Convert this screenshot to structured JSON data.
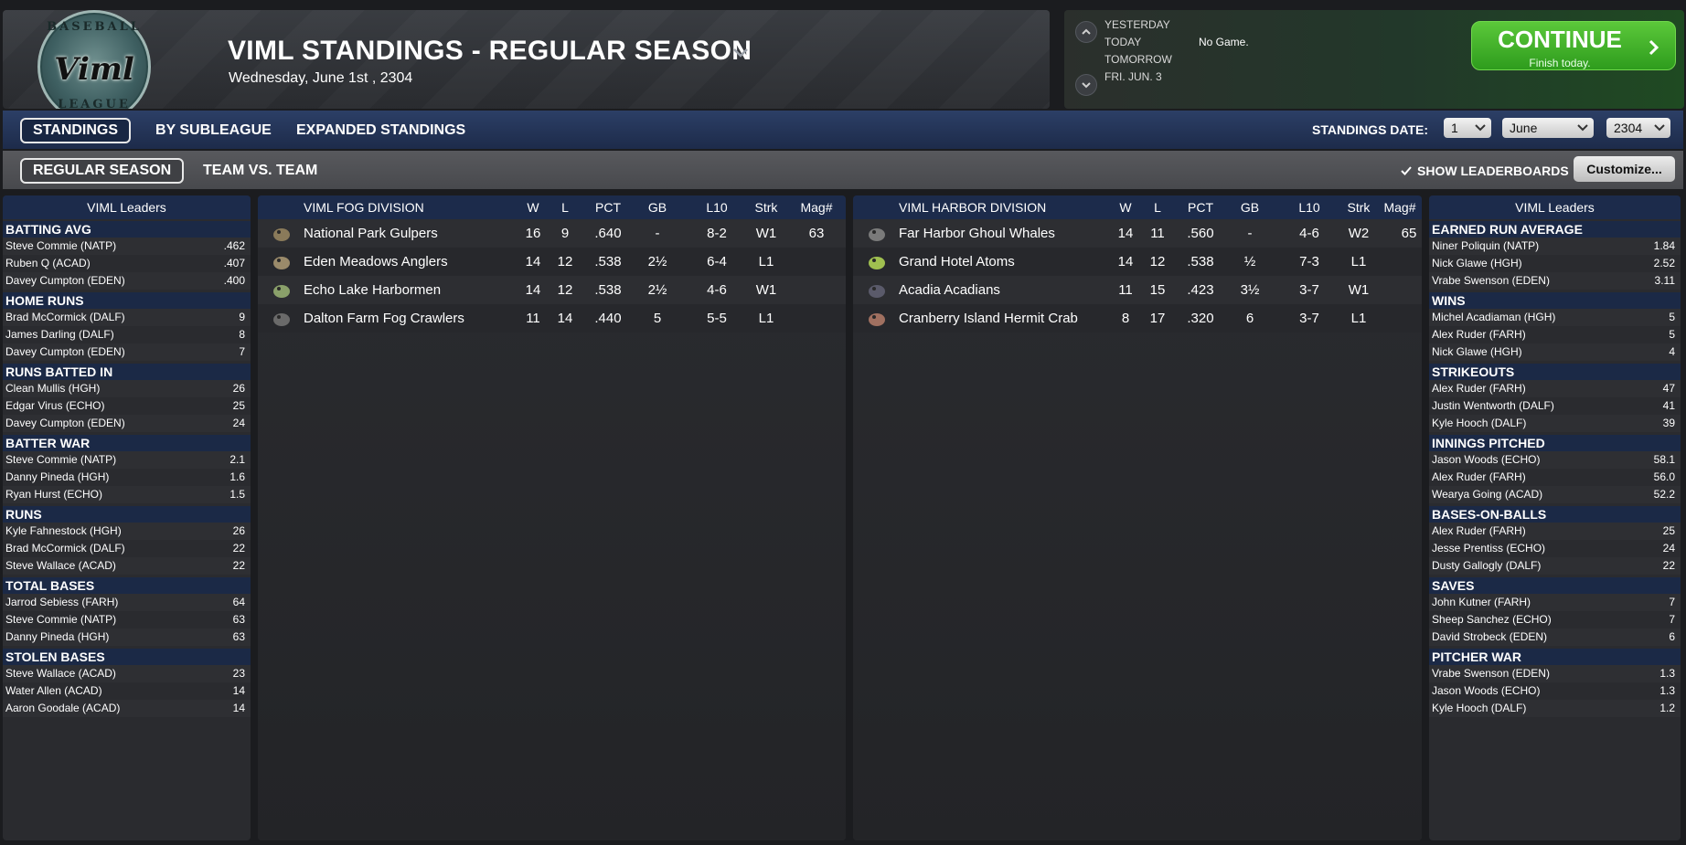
{
  "header": {
    "logo_top": "BASEBALL",
    "logo_text": "Viml",
    "logo_bottom": "LEAGUE",
    "title": "VIML STANDINGS - REGULAR SEASON",
    "date": "Wednesday, June 1st , 2304"
  },
  "game_nav": {
    "yesterday": "YESTERDAY",
    "today": "TODAY",
    "tomorrow": "TOMORROW",
    "next_day": "FRI. JUN. 3",
    "status": "No Game.",
    "continue_label": "CONTINUE",
    "continue_sub": "Finish today."
  },
  "tabs_primary": {
    "standings": "STANDINGS",
    "by_subleague": "BY SUBLEAGUE",
    "expanded": "EXPANDED STANDINGS",
    "date_label": "STANDINGS DATE:",
    "day": "1",
    "month": "June",
    "year": "2304"
  },
  "tabs_secondary": {
    "regular_season": "REGULAR SEASON",
    "team_vs_team": "TEAM VS. TEAM",
    "show_leaderboards": "SHOW LEADERBOARDS",
    "customize": "Customize..."
  },
  "columns": {
    "w": "W",
    "l": "L",
    "pct": "PCT",
    "gb": "GB",
    "l10": "L10",
    "strk": "Strk",
    "mag": "Mag#"
  },
  "fog_division": {
    "title": "VIML FOG DIVISION",
    "teams": [
      {
        "name": "National Park Gulpers",
        "w": "16",
        "l": "9",
        "pct": ".640",
        "gb": "-",
        "l10": "8-2",
        "strk": "W1",
        "mag": "63"
      },
      {
        "name": "Eden Meadows Anglers",
        "w": "14",
        "l": "12",
        "pct": ".538",
        "gb": "2½",
        "l10": "6-4",
        "strk": "L1",
        "mag": ""
      },
      {
        "name": "Echo Lake Harbormen",
        "w": "14",
        "l": "12",
        "pct": ".538",
        "gb": "2½",
        "l10": "4-6",
        "strk": "W1",
        "mag": ""
      },
      {
        "name": "Dalton Farm Fog Crawlers",
        "w": "11",
        "l": "14",
        "pct": ".440",
        "gb": "5",
        "l10": "5-5",
        "strk": "L1",
        "mag": ""
      }
    ]
  },
  "harbor_division": {
    "title": "VIML HARBOR DIVISION",
    "teams": [
      {
        "name": "Far Harbor Ghoul Whales",
        "w": "14",
        "l": "11",
        "pct": ".560",
        "gb": "-",
        "l10": "4-6",
        "strk": "W2",
        "mag": "65"
      },
      {
        "name": "Grand Hotel Atoms",
        "w": "14",
        "l": "12",
        "pct": ".538",
        "gb": "½",
        "l10": "7-3",
        "strk": "L1",
        "mag": ""
      },
      {
        "name": "Acadia Acadians",
        "w": "11",
        "l": "15",
        "pct": ".423",
        "gb": "3½",
        "l10": "3-7",
        "strk": "W1",
        "mag": ""
      },
      {
        "name": "Cranberry Island Hermit Crab",
        "w": "8",
        "l": "17",
        "pct": ".320",
        "gb": "6",
        "l10": "3-7",
        "strk": "L1",
        "mag": ""
      }
    ]
  },
  "leaders_left": {
    "title": "VIML Leaders",
    "categories": [
      {
        "name": "BATTING AVG",
        "rows": [
          {
            "player": "Steve Commie (NATP)",
            "value": ".462"
          },
          {
            "player": "Ruben Q (ACAD)",
            "value": ".407"
          },
          {
            "player": "Davey Cumpton (EDEN)",
            "value": ".400"
          }
        ]
      },
      {
        "name": "HOME RUNS",
        "rows": [
          {
            "player": "Brad McCormick (DALF)",
            "value": "9"
          },
          {
            "player": "James Darling (DALF)",
            "value": "8"
          },
          {
            "player": "Davey Cumpton (EDEN)",
            "value": "7"
          }
        ]
      },
      {
        "name": "RUNS BATTED IN",
        "rows": [
          {
            "player": "Clean Mullis (HGH)",
            "value": "26"
          },
          {
            "player": "Edgar Virus (ECHO)",
            "value": "25"
          },
          {
            "player": "Davey Cumpton (EDEN)",
            "value": "24"
          }
        ]
      },
      {
        "name": "BATTER WAR",
        "rows": [
          {
            "player": "Steve Commie (NATP)",
            "value": "2.1"
          },
          {
            "player": "Danny Pineda (HGH)",
            "value": "1.6"
          },
          {
            "player": "Ryan Hurst (ECHO)",
            "value": "1.5"
          }
        ]
      },
      {
        "name": "RUNS",
        "rows": [
          {
            "player": "Kyle Fahnestock (HGH)",
            "value": "26"
          },
          {
            "player": "Brad McCormick (DALF)",
            "value": "22"
          },
          {
            "player": "Steve Wallace (ACAD)",
            "value": "22"
          }
        ]
      },
      {
        "name": "TOTAL BASES",
        "rows": [
          {
            "player": "Jarrod Sebiess (FARH)",
            "value": "64"
          },
          {
            "player": "Steve Commie (NATP)",
            "value": "63"
          },
          {
            "player": "Danny Pineda (HGH)",
            "value": "63"
          }
        ]
      },
      {
        "name": "STOLEN BASES",
        "rows": [
          {
            "player": "Steve Wallace (ACAD)",
            "value": "23"
          },
          {
            "player": "Water Allen (ACAD)",
            "value": "14"
          },
          {
            "player": "Aaron Goodale (ACAD)",
            "value": "14"
          }
        ]
      }
    ]
  },
  "leaders_right": {
    "title": "VIML Leaders",
    "categories": [
      {
        "name": "EARNED RUN AVERAGE",
        "rows": [
          {
            "player": "Niner Poliquin (NATP)",
            "value": "1.84"
          },
          {
            "player": "Nick Glawe (HGH)",
            "value": "2.52"
          },
          {
            "player": "Vrabe Swenson (EDEN)",
            "value": "3.11"
          }
        ]
      },
      {
        "name": "WINS",
        "rows": [
          {
            "player": "Michel Acadiaman (HGH)",
            "value": "5"
          },
          {
            "player": "Alex Ruder (FARH)",
            "value": "5"
          },
          {
            "player": "Nick Glawe (HGH)",
            "value": "4"
          }
        ]
      },
      {
        "name": "STRIKEOUTS",
        "rows": [
          {
            "player": "Alex Ruder (FARH)",
            "value": "47"
          },
          {
            "player": "Justin Wentworth (DALF)",
            "value": "41"
          },
          {
            "player": "Kyle Hooch (DALF)",
            "value": "39"
          }
        ]
      },
      {
        "name": "INNINGS PITCHED",
        "rows": [
          {
            "player": "Jason Woods (ECHO)",
            "value": "58.1"
          },
          {
            "player": "Alex Ruder (FARH)",
            "value": "56.0"
          },
          {
            "player": "Wearya Going (ACAD)",
            "value": "52.2"
          }
        ]
      },
      {
        "name": "BASES-ON-BALLS",
        "rows": [
          {
            "player": "Alex Ruder (FARH)",
            "value": "25"
          },
          {
            "player": "Jesse Prentiss (ECHO)",
            "value": "24"
          },
          {
            "player": "Dusty Gallogly (DALF)",
            "value": "22"
          }
        ]
      },
      {
        "name": "SAVES",
        "rows": [
          {
            "player": "John Kutner (FARH)",
            "value": "7"
          },
          {
            "player": "Sheep Sanchez (ECHO)",
            "value": "7"
          },
          {
            "player": "David Strobeck (EDEN)",
            "value": "6"
          }
        ]
      },
      {
        "name": "PITCHER WAR",
        "rows": [
          {
            "player": "Vrabe Swenson (EDEN)",
            "value": "1.3"
          },
          {
            "player": "Jason Woods (ECHO)",
            "value": "1.3"
          },
          {
            "player": "Kyle Hooch (DALF)",
            "value": "1.2"
          }
        ]
      }
    ]
  }
}
